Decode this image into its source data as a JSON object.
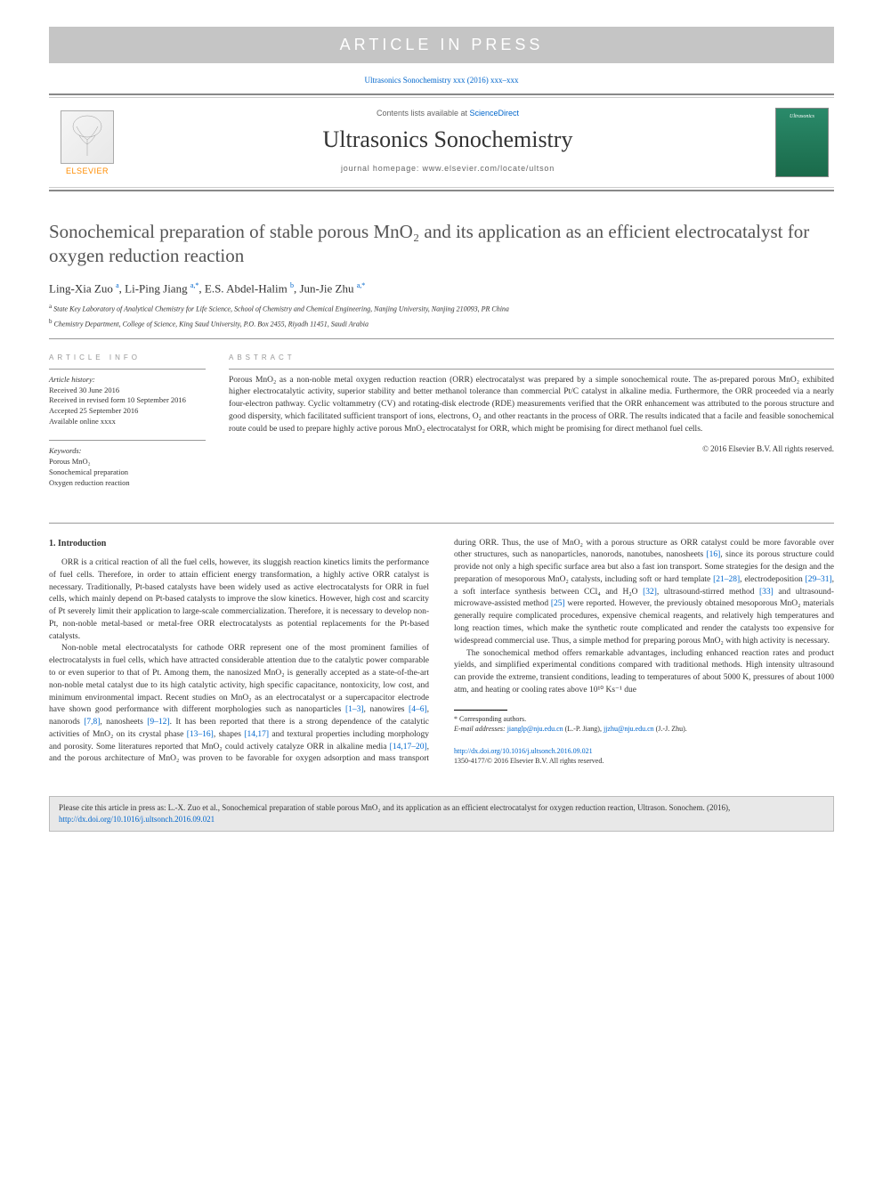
{
  "banner": "ARTICLE IN PRESS",
  "citation_link_text": "Ultrasonics Sonochemistry xxx (2016) xxx–xxx",
  "header": {
    "contents_prefix": "Contents lists available at ",
    "contents_link": "ScienceDirect",
    "journal": "Ultrasonics Sonochemistry",
    "homepage_prefix": "journal homepage: ",
    "homepage_url": "www.elsevier.com/locate/ultson",
    "elsevier": "ELSEVIER",
    "cover_label": "Ultrasonics"
  },
  "title": "Sonochemical preparation of stable porous MnO₂ and its application as an efficient electrocatalyst for oxygen reduction reaction",
  "authors_html": "Ling-Xia Zuo <sup>a</sup>, Li-Ping Jiang <sup>a,*</sup>, E.S. Abdel-Halim <sup>b</sup>, Jun-Jie Zhu <sup>a,*</sup>",
  "affiliations": {
    "a": "State Key Laboratory of Analytical Chemistry for Life Science, School of Chemistry and Chemical Engineering, Nanjing University, Nanjing 210093, PR China",
    "b": "Chemistry Department, College of Science, King Saud University, P.O. Box 2455, Riyadh 11451, Saudi Arabia"
  },
  "info": {
    "label": "ARTICLE INFO",
    "history_label": "Article history:",
    "received": "Received 30 June 2016",
    "revised": "Received in revised form 10 September 2016",
    "accepted": "Accepted 25 September 2016",
    "online": "Available online xxxx",
    "keywords_label": "Keywords:",
    "keywords": [
      "Porous MnO₂",
      "Sonochemical preparation",
      "Oxygen reduction reaction"
    ]
  },
  "abstract": {
    "label": "ABSTRACT",
    "text": "Porous MnO₂ as a non-noble metal oxygen reduction reaction (ORR) electrocatalyst was prepared by a simple sonochemical route. The as-prepared porous MnO₂ exhibited higher electrocatalytic activity, superior stability and better methanol tolerance than commercial Pt/C catalyst in alkaline media. Furthermore, the ORR proceeded via a nearly four-electron pathway. Cyclic voltammetry (CV) and rotating-disk electrode (RDE) measurements verified that the ORR enhancement was attributed to the porous structure and good dispersity, which facilitated sufficient transport of ions, electrons, O₂ and other reactants in the process of ORR. The results indicated that a facile and feasible sonochemical route could be used to prepare highly active porous MnO₂ electrocatalyst for ORR, which might be promising for direct methanol fuel cells.",
    "copyright": "© 2016 Elsevier B.V. All rights reserved."
  },
  "body": {
    "section1_title": "1. Introduction",
    "p1": "ORR is a critical reaction of all the fuel cells, however, its sluggish reaction kinetics limits the performance of fuel cells. Therefore, in order to attain efficient energy transformation, a highly active ORR catalyst is necessary. Traditionally, Pt-based catalysts have been widely used as active electrocatalysts for ORR in fuel cells, which mainly depend on Pt-based catalysts to improve the slow kinetics. However, high cost and scarcity of Pt severely limit their application to large-scale commercialization. Therefore, it is necessary to develop non-Pt, non-noble metal-based or metal-free ORR electrocatalysts as potential replacements for the Pt-based catalysts.",
    "p2a": "Non-noble metal electrocatalysts for cathode ORR represent one of the most prominent families of electrocatalysts in fuel cells, which have attracted considerable attention due to the catalytic power comparable to or even superior to that of Pt. Among them, the nanosized MnO₂ is generally accepted as a state-of-the-art non-noble metal catalyst due to its high catalytic activity, high specific capacitance, nontoxicity, low cost, and minimum environmental impact. Recent studies on MnO₂ as an electrocatalyst or a supercapacitor electrode have shown good performance with different morphologies such as nanoparticles ",
    "r1": "[1–3]",
    "p2b": ", nanowires ",
    "r2": "[4–6]",
    "p2c": ", nanorods ",
    "r3": "[7,8]",
    "p2d": ", nanosheets ",
    "r4": "[9–12]",
    "p2e": ". It has been reported that there is a strong dependence of the catalytic activities of MnO₂ on its crystal phase ",
    "r5": "[13–16]",
    "p2f": ", shapes ",
    "r6": "[14,17]",
    "p2g": " and textural properties including morphology and porosity. Some literatures reported that MnO₂ could actively catalyze ORR in alkaline media ",
    "r7": "[14,17–20]",
    "p2h": ", and the porous architecture of MnO₂ was proven to be favorable for oxygen adsorption and mass transport during ORR. Thus, the use of MnO₂ with a porous structure as ORR catalyst could be more favorable over other structures, such as nanoparticles, nanorods, nanotubes, nanosheets ",
    "r8": "[16]",
    "p2i": ", since its porous structure could provide not only a high specific surface area but also a fast ion transport. Some strategies for the design and the preparation of mesoporous MnO₂ catalysts, including soft or hard template ",
    "r9": "[21–28]",
    "p2j": ", electrodeposition ",
    "r10": "[29–31]",
    "p2k": ", a soft interface synthesis between CCl₄ and H₂O ",
    "r11": "[32]",
    "p2l": ", ultrasound-stirred method ",
    "r12": "[33]",
    "p2m": " and ultrasound-microwave-assisted method ",
    "r13": "[25]",
    "p2n": " were reported. However, the previously obtained mesoporous MnO₂ materials generally require complicated procedures, expensive chemical reagents, and relatively high temperatures and long reaction times, which make the synthetic route complicated and render the catalysts too expensive for widespread commercial use. Thus, a simple method for preparing porous MnO₂ with high activity is necessary.",
    "p3": "The sonochemical method offers remarkable advantages, including enhanced reaction rates and product yields, and simplified experimental conditions compared with traditional methods. High intensity ultrasound can provide the extreme, transient conditions, leading to temperatures of about 5000 K, pressures of about 1000 atm, and heating or cooling rates above 10¹⁰ Ks⁻¹ due"
  },
  "footnotes": {
    "corr_label": "* Corresponding authors.",
    "email_label": "E-mail addresses:",
    "email1": "jianglp@nju.edu.cn",
    "name1": "(L.-P. Jiang),",
    "email2": "jjzhu@nju.edu.cn",
    "name2": "(J.-J. Zhu)."
  },
  "doi": {
    "url": "http://dx.doi.org/10.1016/j.ultsonch.2016.09.021",
    "issn_copyright": "1350-4177/© 2016 Elsevier B.V. All rights reserved."
  },
  "citebox": {
    "prefix": "Please cite this article in press as: L.-X. Zuo et al., Sonochemical preparation of stable porous MnO₂ and its application as an efficient electrocatalyst for oxygen reduction reaction, Ultrason. Sonochem. (2016), ",
    "link": "http://dx.doi.org/10.1016/j.ultsonch.2016.09.021"
  },
  "colors": {
    "link": "#0066cc",
    "banner_bg": "#c5c5c5",
    "elsevier_orange": "#ff8c00",
    "cover_green": "#2a8a6a"
  }
}
